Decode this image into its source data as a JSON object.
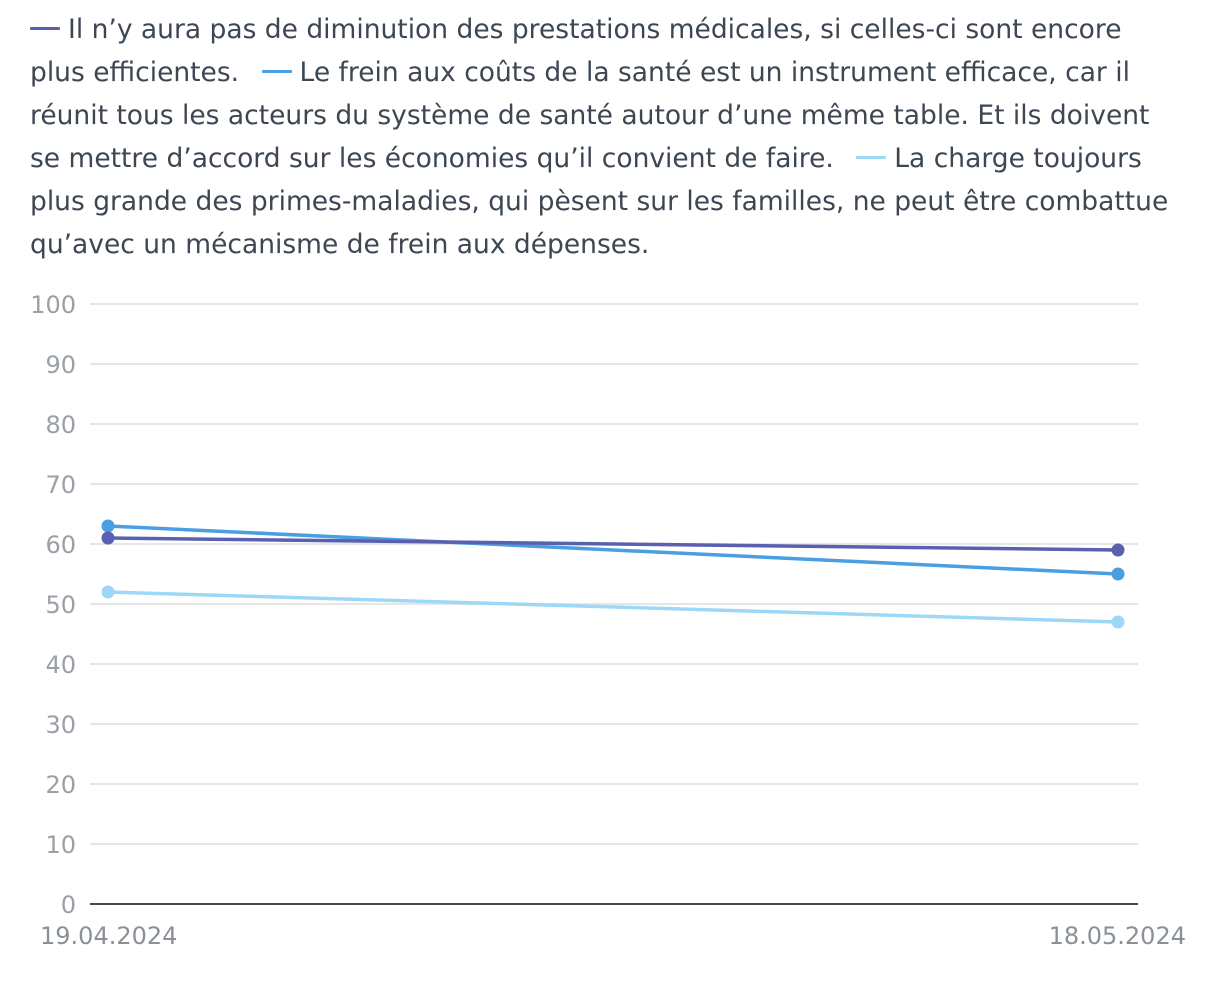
{
  "chart_data": {
    "type": "line",
    "x": [
      "19.04.2024",
      "18.05.2024"
    ],
    "ylim": [
      0,
      100
    ],
    "yticks": [
      0,
      10,
      20,
      30,
      40,
      50,
      60,
      70,
      80,
      90,
      100
    ],
    "grid": true,
    "legend_position": "top",
    "series": [
      {
        "name": "Il n’y aura pas de diminution des prestations médicales, si celles-ci sont encore plus efficientes.",
        "values": [
          61,
          59
        ],
        "color": "#5a5fb0"
      },
      {
        "name": "Le frein aux coûts de la santé est un instrument efficace, car il réunit tous les acteurs du système de santé autour d’une même table. Et ils doivent se mettre d’accord sur les économies qu’il convient de faire.",
        "values": [
          63,
          55
        ],
        "color": "#4a9ee2"
      },
      {
        "name": "La charge toujours plus grande des primes-maladies, qui pèsent sur les familles, ne peut être combattue qu’avec un mécanisme de frein aux dépenses.",
        "values": [
          52,
          47
        ],
        "color": "#9ed8f7"
      }
    ]
  }
}
